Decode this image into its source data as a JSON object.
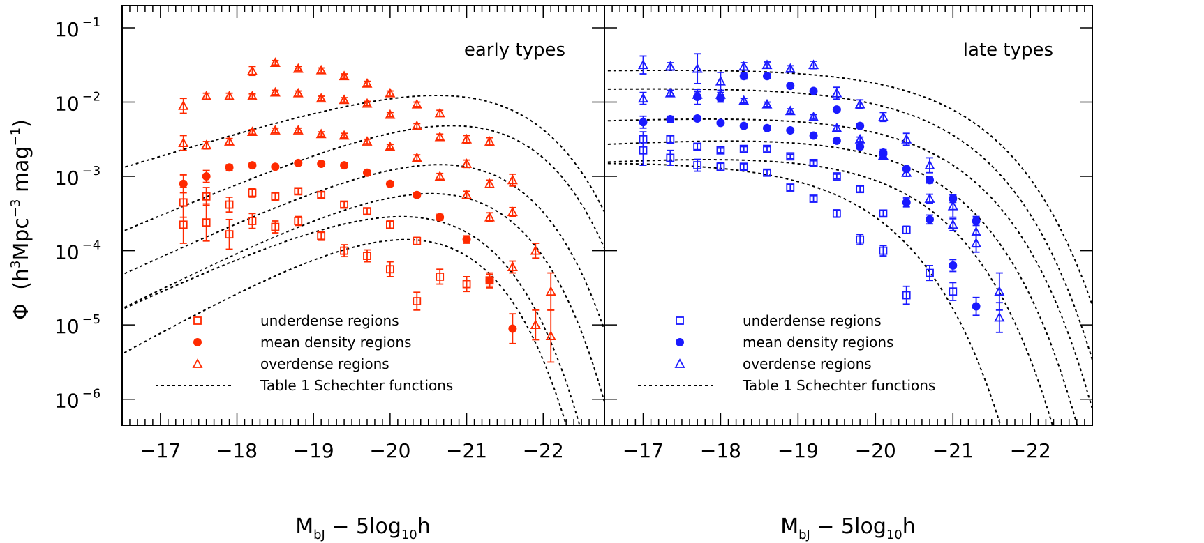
{
  "chart_data": [
    {
      "type": "scatter",
      "panel_label": "early types",
      "color": "#ff2a00",
      "xlim": [
        -16.5,
        -22.8
      ],
      "ylim_log10": [
        -6.35,
        -0.7
      ],
      "log_scale_y": true,
      "x_ticks": [
        -17,
        -18,
        -19,
        -20,
        -21,
        -22
      ],
      "x_tick_labels": [
        "−17",
        "−18",
        "−19",
        "−20",
        "−21",
        "−22"
      ],
      "y_tick_exponents": [
        -1,
        -2,
        -3,
        -4,
        -5,
        -6
      ],
      "legend": {
        "position": "bottom-left",
        "entries": [
          "underdense regions",
          "mean density regions",
          "overdense regions",
          "Table 1 Schechter functions"
        ]
      },
      "series": [
        {
          "name": "underdense regions",
          "marker": "square",
          "x": [
            -17.3,
            -17.6,
            -17.9,
            -18.2,
            -18.5,
            -18.8,
            -19.1,
            -19.4,
            -19.7,
            -20.0,
            -20.35,
            -20.65,
            -21.0,
            -21.3
          ],
          "log10_y": [
            -3.65,
            -3.62,
            -3.78,
            -3.6,
            -3.68,
            -3.6,
            -3.8,
            -4.0,
            -4.07,
            -4.25,
            -4.68,
            -4.35,
            -4.45,
            -4.4
          ],
          "err_dex": [
            0.25,
            0.25,
            0.2,
            0.1,
            0.08,
            0.06,
            0.06,
            0.08,
            0.08,
            0.1,
            0.12,
            0.1,
            0.1,
            0.08
          ]
        },
        {
          "name": "underdense regions",
          "marker": "square",
          "x": [
            -17.3,
            -17.6,
            -17.9,
            -18.2,
            -18.5,
            -18.8,
            -19.1,
            -19.4,
            -19.7,
            -20.0,
            -20.35
          ],
          "log10_y": [
            -3.35,
            -3.27,
            -3.38,
            -3.22,
            -3.27,
            -3.2,
            -3.25,
            -3.38,
            -3.47,
            -3.65,
            -3.87
          ],
          "err_dex": [
            0.2,
            0.12,
            0.1,
            0.06,
            0.05,
            0.04,
            0.04,
            0.04,
            0.04,
            0.05,
            0.05
          ]
        },
        {
          "name": "mean density regions",
          "marker": "filled-circle",
          "x": [
            -17.3,
            -17.6,
            -17.9,
            -18.2,
            -18.5,
            -18.8,
            -19.1,
            -19.4,
            -19.7,
            -20.0,
            -20.35,
            -20.65,
            -21.0,
            -21.3,
            -21.6
          ],
          "log10_y": [
            -3.1,
            -3.0,
            -2.88,
            -2.85,
            -2.87,
            -2.82,
            -2.83,
            -2.85,
            -2.95,
            -3.1,
            -3.25,
            -3.55,
            -3.85,
            -4.4,
            -5.05
          ],
          "err_dex": [
            0.12,
            0.08,
            0.04,
            0.03,
            0.03,
            0.03,
            0.03,
            0.03,
            0.03,
            0.03,
            0.03,
            0.04,
            0.05,
            0.1,
            0.2
          ]
        },
        {
          "name": "overdense regions",
          "marker": "triangle",
          "x": [
            -17.3,
            -17.6,
            -17.9,
            -18.2,
            -18.5,
            -18.8,
            -19.1,
            -19.4,
            -19.7,
            -20.0,
            -20.35,
            -20.65,
            -21.0,
            -21.3,
            -21.6,
            -21.9,
            -22.1
          ],
          "log10_y": [
            -2.55,
            -2.58,
            -2.53,
            -2.4,
            -2.38,
            -2.38,
            -2.43,
            -2.45,
            -2.53,
            -2.6,
            -2.75,
            -3.0,
            -3.25,
            -3.55,
            -4.22,
            -5.0,
            -5.15
          ],
          "err_dex": [
            0.1,
            0.05,
            0.04,
            0.03,
            0.03,
            0.03,
            0.03,
            0.03,
            0.03,
            0.03,
            0.04,
            0.04,
            0.05,
            0.06,
            0.08,
            0.2,
            0.35
          ]
        },
        {
          "name": "overdense regions",
          "marker": "triangle",
          "x": [
            -17.3,
            -17.6,
            -17.9,
            -18.2,
            -18.5,
            -18.8,
            -19.1,
            -19.4,
            -19.7,
            -20.0,
            -20.35,
            -20.65,
            -21.0,
            -21.3,
            -21.6,
            -21.9,
            -22.1
          ],
          "log10_y": [
            -2.05,
            -1.92,
            -1.92,
            -1.92,
            -1.87,
            -1.88,
            -1.95,
            -1.97,
            -2.02,
            -2.17,
            -2.32,
            -2.47,
            -2.83,
            -3.1,
            -3.48,
            -4.0,
            -4.55
          ],
          "err_dex": [
            0.1,
            0.04,
            0.04,
            0.03,
            0.03,
            0.03,
            0.03,
            0.03,
            0.03,
            0.03,
            0.03,
            0.04,
            0.05,
            0.05,
            0.06,
            0.1,
            0.25
          ]
        },
        {
          "name": "overdense regions",
          "marker": "triangle",
          "x": [
            -18.2,
            -18.5,
            -18.8,
            -19.1,
            -19.4,
            -19.7,
            -20.0,
            -20.35,
            -20.65,
            -21.0,
            -21.3,
            -21.6
          ],
          "log10_y": [
            -1.58,
            -1.47,
            -1.55,
            -1.57,
            -1.65,
            -1.75,
            -1.88,
            -2.03,
            -2.15,
            -2.5,
            -2.53,
            -3.05
          ],
          "err_dex": [
            0.06,
            0.03,
            0.03,
            0.03,
            0.03,
            0.03,
            0.03,
            0.03,
            0.04,
            0.05,
            0.05,
            0.08
          ]
        }
      ],
      "schechter_curves": [
        {
          "M_star": -19.8,
          "log10_phi_star": -3.42,
          "alpha": 0.45
        },
        {
          "M_star": -19.95,
          "log10_phi_star": -3.08,
          "alpha": 0.2
        },
        {
          "M_star": -20.25,
          "log10_phi_star": -2.78,
          "alpha": 0.3
        },
        {
          "M_star": -20.45,
          "log10_phi_star": -2.38,
          "alpha": 0.2
        },
        {
          "M_star": -20.7,
          "log10_phi_star": -1.85,
          "alpha": 0.1
        },
        {
          "M_star": -20.85,
          "log10_phi_star": -1.45,
          "alpha": -0.2
        }
      ]
    },
    {
      "type": "scatter",
      "panel_label": "late types",
      "color": "#1a1aff",
      "xlim": [
        -16.5,
        -22.8
      ],
      "ylim_log10": [
        -6.35,
        -0.7
      ],
      "log_scale_y": true,
      "x_ticks": [
        -17,
        -18,
        -19,
        -20,
        -21,
        -22
      ],
      "x_tick_labels": [
        "−17",
        "−18",
        "−19",
        "−20",
        "−21",
        "−22"
      ],
      "y_tick_exponents": [
        -1,
        -2,
        -3,
        -4,
        -5,
        -6
      ],
      "legend": {
        "position": "bottom-left",
        "entries": [
          "underdense regions",
          "mean density regions",
          "overdense regions",
          "Table 1 Schechter functions"
        ]
      },
      "series": [
        {
          "name": "underdense regions",
          "marker": "square",
          "x": [
            -17.0,
            -17.35,
            -17.7,
            -18.0,
            -18.3,
            -18.6,
            -18.9,
            -19.2,
            -19.5,
            -19.8,
            -20.1,
            -20.4,
            -20.7,
            -21.0
          ],
          "log10_y": [
            -2.65,
            -2.75,
            -2.85,
            -2.87,
            -2.87,
            -2.95,
            -3.15,
            -3.3,
            -3.5,
            -3.85,
            -4.0,
            -4.6,
            -4.3,
            -4.55
          ],
          "err_dex": [
            0.2,
            0.1,
            0.08,
            0.05,
            0.04,
            0.04,
            0.04,
            0.04,
            0.05,
            0.07,
            0.07,
            0.12,
            0.1,
            0.12
          ]
        },
        {
          "name": "underdense regions",
          "marker": "square",
          "x": [
            -17.0,
            -17.35,
            -17.7,
            -18.0,
            -18.3,
            -18.6,
            -18.9,
            -19.2,
            -19.5,
            -19.8,
            -20.1,
            -20.4
          ],
          "log10_y": [
            -2.5,
            -2.5,
            -2.6,
            -2.65,
            -2.63,
            -2.63,
            -2.73,
            -2.82,
            -3.0,
            -3.17,
            -3.5,
            -3.72
          ],
          "err_dex": [
            0.1,
            0.05,
            0.04,
            0.03,
            0.03,
            0.03,
            0.03,
            0.03,
            0.03,
            0.04,
            0.04,
            0.05
          ]
        },
        {
          "name": "mean density regions",
          "marker": "filled-circle",
          "x": [
            -17.0,
            -17.35,
            -17.7,
            -18.0,
            -18.3,
            -18.6,
            -18.9,
            -19.2,
            -19.5,
            -19.8,
            -20.1,
            -20.4,
            -20.7,
            -21.0,
            -21.3
          ],
          "log10_y": [
            -2.27,
            -2.23,
            -2.22,
            -2.28,
            -2.32,
            -2.35,
            -2.38,
            -2.45,
            -2.52,
            -2.6,
            -2.7,
            -2.9,
            -3.05,
            -3.3,
            -3.6
          ],
          "err_dex": [
            0.08,
            0.04,
            0.03,
            0.03,
            0.03,
            0.03,
            0.03,
            0.03,
            0.03,
            0.03,
            0.03,
            0.03,
            0.04,
            0.05,
            0.06
          ]
        },
        {
          "name": "mean density regions",
          "marker": "filled-circle",
          "x": [
            -17.7,
            -18.0,
            -18.3,
            -18.6,
            -18.9,
            -19.2,
            -19.5,
            -19.8,
            -20.1,
            -20.4,
            -20.7,
            -21.0,
            -21.3
          ],
          "log10_y": [
            -1.93,
            -1.95,
            -1.65,
            -1.65,
            -1.78,
            -1.85,
            -2.1,
            -2.32,
            -2.68,
            -3.35,
            -3.58,
            -4.2,
            -4.75
          ],
          "err_dex": [
            0.1,
            0.05,
            0.04,
            0.03,
            0.03,
            0.03,
            0.03,
            0.03,
            0.04,
            0.06,
            0.06,
            0.08,
            0.12
          ]
        },
        {
          "name": "overdense regions",
          "marker": "triangle",
          "x": [
            -17.0,
            -17.35,
            -17.7,
            -18.0,
            -18.3,
            -18.6,
            -18.9,
            -19.2,
            -19.5,
            -19.8,
            -20.1,
            -20.4,
            -20.7,
            -21.0,
            -21.3,
            -21.6
          ],
          "log10_y": [
            -1.95,
            -1.88,
            -1.9,
            -1.9,
            -1.98,
            -2.03,
            -2.12,
            -2.2,
            -2.35,
            -2.5,
            -2.72,
            -2.95,
            -3.3,
            -3.65,
            -3.9,
            -4.9
          ],
          "err_dex": [
            0.08,
            0.04,
            0.04,
            0.03,
            0.03,
            0.03,
            0.03,
            0.03,
            0.03,
            0.03,
            0.04,
            0.05,
            0.06,
            0.08,
            0.12,
            0.2
          ]
        },
        {
          "name": "overdense regions",
          "marker": "triangle",
          "x": [
            -17.0,
            -17.35,
            -17.7,
            -18.0,
            -18.3,
            -18.6,
            -18.9,
            -19.2,
            -19.5,
            -19.8,
            -20.1,
            -20.4,
            -20.7,
            -21.0,
            -21.3,
            -21.6
          ],
          "log10_y": [
            -1.5,
            -1.52,
            -1.55,
            -1.72,
            -1.52,
            -1.5,
            -1.55,
            -1.5,
            -1.88,
            -2.03,
            -2.2,
            -2.5,
            -2.85,
            -3.4,
            -3.75,
            -4.55
          ],
          "err_dex": [
            0.12,
            0.05,
            0.2,
            0.12,
            0.05,
            0.04,
            0.04,
            0.05,
            0.08,
            0.06,
            0.06,
            0.08,
            0.1,
            0.15,
            0.2,
            0.25
          ]
        }
      ],
      "schechter_curves": [
        {
          "M_star": -19.3,
          "log10_phi_star": -2.7,
          "alpha": -0.95
        },
        {
          "M_star": -19.9,
          "log10_phi_star": -2.55,
          "alpha": -0.85
        },
        {
          "M_star": -20.15,
          "log10_phi_star": -2.3,
          "alpha": -0.85
        },
        {
          "M_star": -20.35,
          "log10_phi_star": -2.05,
          "alpha": -0.9
        },
        {
          "M_star": -20.45,
          "log10_phi_star": -1.7,
          "alpha": -0.95
        },
        {
          "M_star": -20.6,
          "log10_phi_star": -1.45,
          "alpha": -0.95
        }
      ]
    }
  ],
  "y_axis_label": "Φ (h³Mpc⁻³ mag⁻¹)",
  "x_axis_label": "M_bJ − 5log₁₀h",
  "y_tick_base": "10",
  "axis_labels": {
    "y_phi": "Φ",
    "y_open": "(h",
    "y_sup1": "3",
    "y_mid": "Mpc",
    "y_sup2": "−3",
    "y_mag": " mag",
    "y_sup3": "−1",
    "y_close": ")",
    "x_main": "M",
    "x_sub": "bJ",
    "x_rest": " − 5log",
    "x_sub2": "10",
    "x_h": "h"
  }
}
